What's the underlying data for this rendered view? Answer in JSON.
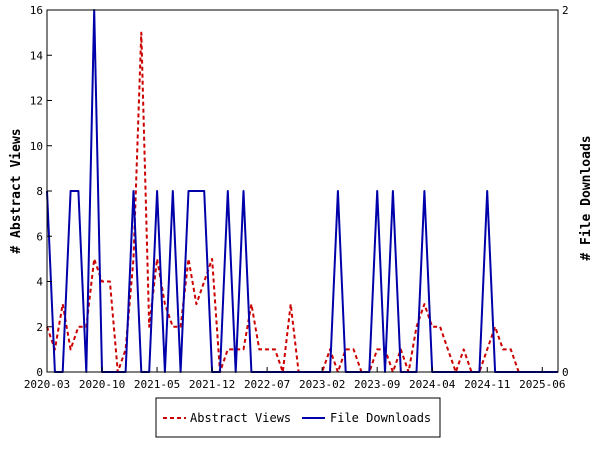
{
  "chart_data": {
    "type": "line",
    "ylabel_left": "# Abstract Views",
    "ylabel_right": "# File Downloads",
    "y_left_range": [
      0,
      16
    ],
    "y_left_ticks": [
      "0",
      "2",
      "4",
      "6",
      "8",
      "10",
      "12",
      "14",
      "16"
    ],
    "y_right_range": [
      0,
      2
    ],
    "y_right_ticks": [
      "0",
      "2"
    ],
    "x_tick_labels": [
      "2020-03",
      "2020-10",
      "2021-05",
      "2021-12",
      "2022-07",
      "2023-02",
      "2023-09",
      "2024-04",
      "2024-11",
      "2025-06"
    ],
    "grid": false,
    "legend_position": "bottom",
    "series": [
      {
        "name": "Abstract Views",
        "axis": "left",
        "color": "#cc0000",
        "style": "dashed",
        "values": [
          [
            "2020-03",
            2
          ],
          [
            "2020-04",
            1
          ],
          [
            "2020-05",
            3
          ],
          [
            "2020-06",
            1
          ],
          [
            "2020-07",
            2
          ],
          [
            "2020-08",
            2
          ],
          [
            "2020-09",
            5
          ],
          [
            "2020-10",
            4
          ],
          [
            "2020-11",
            4
          ],
          [
            "2020-12",
            0
          ],
          [
            "2021-01",
            1
          ],
          [
            "2021-02",
            5
          ],
          [
            "2021-03",
            15
          ],
          [
            "2021-04",
            2
          ],
          [
            "2021-05",
            5
          ],
          [
            "2021-06",
            3
          ],
          [
            "2021-07",
            2
          ],
          [
            "2021-08",
            2
          ],
          [
            "2021-09",
            5
          ],
          [
            "2021-10",
            3
          ],
          [
            "2021-11",
            4
          ],
          [
            "2021-12",
            5
          ],
          [
            "2022-01",
            0
          ],
          [
            "2022-02",
            1
          ],
          [
            "2022-03",
            1
          ],
          [
            "2022-04",
            1
          ],
          [
            "2022-05",
            3
          ],
          [
            "2022-06",
            1
          ],
          [
            "2022-07",
            1
          ],
          [
            "2022-08",
            1
          ],
          [
            "2022-09",
            0
          ],
          [
            "2022-10",
            3
          ],
          [
            "2022-11",
            0
          ],
          [
            "2022-12",
            0
          ],
          [
            "2023-01",
            0
          ],
          [
            "2023-02",
            0
          ],
          [
            "2023-03",
            1
          ],
          [
            "2023-04",
            0
          ],
          [
            "2023-05",
            1
          ],
          [
            "2023-06",
            1
          ],
          [
            "2023-07",
            0
          ],
          [
            "2023-08",
            0
          ],
          [
            "2023-09",
            1
          ],
          [
            "2023-10",
            1
          ],
          [
            "2023-11",
            0
          ],
          [
            "2023-12",
            1
          ],
          [
            "2024-01",
            0
          ],
          [
            "2024-02",
            2
          ],
          [
            "2024-03",
            3
          ],
          [
            "2024-04",
            2
          ],
          [
            "2024-05",
            2
          ],
          [
            "2024-06",
            1
          ],
          [
            "2024-07",
            0
          ],
          [
            "2024-08",
            1
          ],
          [
            "2024-09",
            0
          ],
          [
            "2024-10",
            0
          ],
          [
            "2024-11",
            1
          ],
          [
            "2024-12",
            2
          ],
          [
            "2025-01",
            1
          ],
          [
            "2025-02",
            1
          ],
          [
            "2025-03",
            0
          ],
          [
            "2025-04",
            0
          ],
          [
            "2025-05",
            0
          ],
          [
            "2025-06",
            0
          ],
          [
            "2025-07",
            0
          ],
          [
            "2025-08",
            0
          ]
        ]
      },
      {
        "name": "File Downloads",
        "axis": "right",
        "color": "#0000aa",
        "style": "solid",
        "values": [
          [
            "2020-03",
            1
          ],
          [
            "2020-04",
            0
          ],
          [
            "2020-05",
            0
          ],
          [
            "2020-06",
            1
          ],
          [
            "2020-07",
            1
          ],
          [
            "2020-08",
            0
          ],
          [
            "2020-09",
            2
          ],
          [
            "2020-10",
            0
          ],
          [
            "2020-11",
            0
          ],
          [
            "2020-12",
            0
          ],
          [
            "2021-01",
            0
          ],
          [
            "2021-02",
            1
          ],
          [
            "2021-03",
            0
          ],
          [
            "2021-04",
            0
          ],
          [
            "2021-05",
            1
          ],
          [
            "2021-06",
            0
          ],
          [
            "2021-07",
            1
          ],
          [
            "2021-08",
            0
          ],
          [
            "2021-09",
            1
          ],
          [
            "2021-10",
            1
          ],
          [
            "2021-11",
            1
          ],
          [
            "2021-12",
            0
          ],
          [
            "2022-01",
            0
          ],
          [
            "2022-02",
            1
          ],
          [
            "2022-03",
            0
          ],
          [
            "2022-04",
            1
          ],
          [
            "2022-05",
            0
          ],
          [
            "2022-06",
            0
          ],
          [
            "2022-07",
            0
          ],
          [
            "2022-08",
            0
          ],
          [
            "2022-09",
            0
          ],
          [
            "2022-10",
            0
          ],
          [
            "2022-11",
            0
          ],
          [
            "2022-12",
            0
          ],
          [
            "2023-01",
            0
          ],
          [
            "2023-02",
            0
          ],
          [
            "2023-03",
            0
          ],
          [
            "2023-04",
            1
          ],
          [
            "2023-05",
            0
          ],
          [
            "2023-06",
            0
          ],
          [
            "2023-07",
            0
          ],
          [
            "2023-08",
            0
          ],
          [
            "2023-09",
            1
          ],
          [
            "2023-10",
            0
          ],
          [
            "2023-11",
            1
          ],
          [
            "2023-12",
            0
          ],
          [
            "2024-01",
            0
          ],
          [
            "2024-02",
            0
          ],
          [
            "2024-03",
            1
          ],
          [
            "2024-04",
            0
          ],
          [
            "2024-05",
            0
          ],
          [
            "2024-06",
            0
          ],
          [
            "2024-07",
            0
          ],
          [
            "2024-08",
            0
          ],
          [
            "2024-09",
            0
          ],
          [
            "2024-10",
            0
          ],
          [
            "2024-11",
            1
          ],
          [
            "2024-12",
            0
          ],
          [
            "2025-01",
            0
          ],
          [
            "2025-02",
            0
          ],
          [
            "2025-03",
            0
          ],
          [
            "2025-04",
            0
          ],
          [
            "2025-05",
            0
          ],
          [
            "2025-06",
            0
          ],
          [
            "2025-07",
            0
          ],
          [
            "2025-08",
            0
          ]
        ]
      }
    ]
  }
}
